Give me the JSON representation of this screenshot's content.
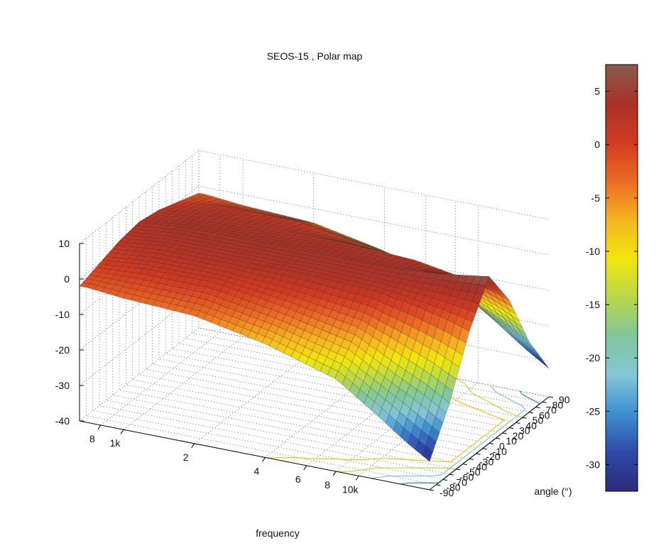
{
  "chart_data": {
    "type": "surface",
    "title": "SEOS-15  ,  Polar map",
    "xlabel": "frequency",
    "ylabel": "angle (°)",
    "zlabel": "",
    "x_ticks": [
      "8",
      "1k",
      "2",
      "4",
      "6",
      "8",
      "10k"
    ],
    "x_tick_values_hz": [
      800,
      1000,
      2000,
      4000,
      6000,
      8000,
      10000
    ],
    "xlim_hz": [
      650,
      20000
    ],
    "x_scale": "log",
    "y_ticks": [
      "-90",
      "-80",
      "-70",
      "-60",
      "-50",
      "-40",
      "-30",
      "-20",
      "-10",
      "0",
      "10",
      "20",
      "30",
      "40",
      "50",
      "60",
      "70",
      "80",
      "90"
    ],
    "y_tick_values": [
      -90,
      -80,
      -70,
      -60,
      -50,
      -40,
      -30,
      -20,
      -10,
      0,
      10,
      20,
      30,
      40,
      50,
      60,
      70,
      80,
      90
    ],
    "ylim": [
      -90,
      90
    ],
    "z_ticks": [
      "10",
      "0",
      "-10",
      "-20",
      "-30",
      "-40"
    ],
    "z_tick_values": [
      10,
      0,
      -10,
      -20,
      -30,
      -40
    ],
    "zlim": [
      -40,
      10
    ],
    "grid": true,
    "contour_projection_on_floor": true,
    "colormap": "jet",
    "colorbar": {
      "ticks": [
        "5",
        "0",
        "-5",
        "-10",
        "-15",
        "-20",
        "-25",
        "-30"
      ],
      "tick_values": [
        5,
        0,
        -5,
        -10,
        -15,
        -20,
        -25,
        -30
      ],
      "range": [
        -32.5,
        7.5
      ],
      "colors": [
        "#2b2a7a",
        "#2e4aa8",
        "#3e8fd0",
        "#86c6d6",
        "#7fc69a",
        "#b8d84a",
        "#f1e60c",
        "#f5b421",
        "#ec6a24",
        "#d13a21",
        "#a83228",
        "#8a5a4e"
      ]
    },
    "surface_samples": {
      "frequency_hz": [
        700,
        1000,
        2000,
        4000,
        8000,
        12000,
        16000,
        20000
      ],
      "angle_deg": [
        -90,
        -60,
        -30,
        0,
        30,
        60,
        90
      ],
      "spl_db": [
        [
          -2,
          0,
          2,
          3,
          2,
          0,
          -2
        ],
        [
          -3,
          1,
          3,
          4,
          3,
          1,
          -3
        ],
        [
          -4,
          1,
          3,
          4,
          3,
          1,
          -4
        ],
        [
          -8,
          -2,
          3,
          4,
          3,
          -2,
          -8
        ],
        [
          -14,
          -6,
          2,
          4,
          2,
          -6,
          -14
        ],
        [
          -22,
          -12,
          0,
          5,
          0,
          -12,
          -22
        ],
        [
          -28,
          -16,
          -2,
          6,
          -2,
          -16,
          -28
        ],
        [
          -32,
          -20,
          -4,
          7,
          -4,
          -20,
          -32
        ]
      ]
    }
  }
}
